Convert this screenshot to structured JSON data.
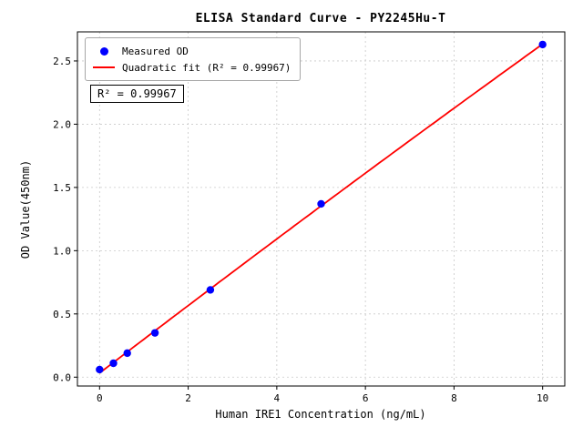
{
  "chart_data": {
    "type": "scatter",
    "title": "ELISA Standard Curve - PY2245Hu-T",
    "xlabel": "Human IRE1 Concentration (ng/mL)",
    "ylabel": "OD Value(450nm)",
    "xlim": [
      -0.5,
      10.5
    ],
    "ylim": [
      -0.07,
      2.73
    ],
    "xticks": [
      0,
      2,
      4,
      6,
      8,
      10
    ],
    "yticks": [
      0.0,
      0.5,
      1.0,
      1.5,
      2.0,
      2.5
    ],
    "grid": true,
    "legend_position": "upper-left",
    "series": [
      {
        "name": "Measured OD",
        "kind": "scatter",
        "color": "#0000ff",
        "x": [
          0,
          0.3125,
          0.625,
          1.25,
          2.5,
          5,
          10
        ],
        "y": [
          0.06,
          0.11,
          0.19,
          0.35,
          0.69,
          1.37,
          2.63
        ]
      },
      {
        "name": "Quadratic fit (R² = 0.99967)",
        "kind": "line",
        "fit": "quadratic",
        "color": "#ff0000",
        "r_squared": 0.99967
      }
    ],
    "annotation": "R² = 0.99967"
  }
}
